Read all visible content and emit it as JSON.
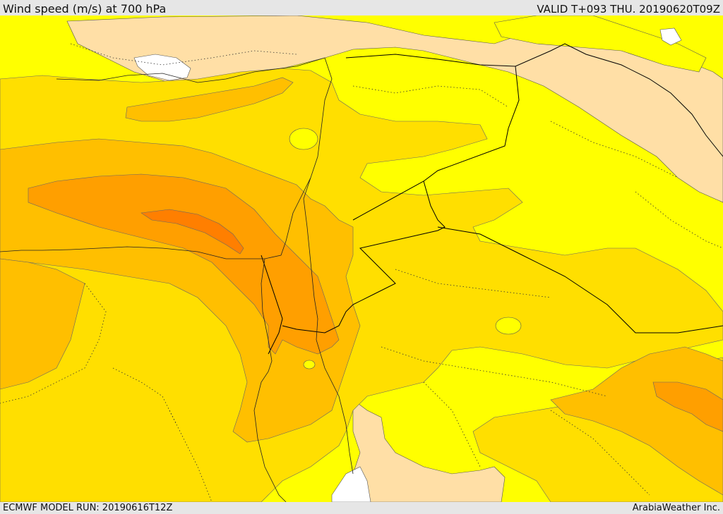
{
  "header": {
    "title": "Wind speed (m/s) at 700 hPa",
    "valid": "VALID T+093 THU. 20190620T09Z"
  },
  "footer": {
    "model_run": "ECMWF MODEL RUN: 20190616T12Z",
    "credit": "ArabiaWeather Inc."
  },
  "colors": {
    "land_low": "#ffdfa6",
    "sea_white": "#ffffff",
    "band_1": "#ffff00",
    "band_2": "#ffdf00",
    "band_3": "#ffbf00",
    "band_4": "#ff9f00",
    "band_5": "#ff7f00",
    "border": "#000000"
  }
}
